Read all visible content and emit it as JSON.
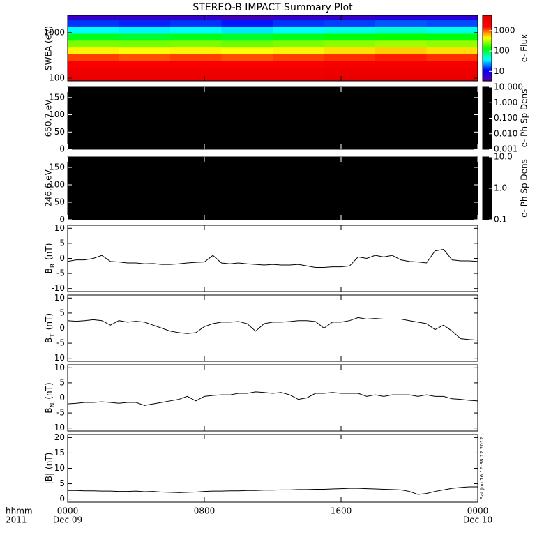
{
  "title": "STEREO-B IMPACT Summary Plot",
  "timestamp": "Sat Jun 16 16:38:12 2012",
  "x_axis": {
    "xlim": [
      0,
      24
    ],
    "xticks": [
      {
        "value": 0,
        "label": "0000"
      },
      {
        "value": 8,
        "label": "0800"
      },
      {
        "value": 16,
        "label": "1600"
      },
      {
        "value": 24,
        "label": "0000"
      }
    ],
    "dates": [
      {
        "value": 0,
        "label": "Dec 09"
      },
      {
        "value": 24,
        "label": "Dec 10"
      }
    ],
    "format_label": "hhmm",
    "year_label": "2011",
    "x": [
      0,
      0.5,
      1,
      1.5,
      2,
      2.5,
      3,
      3.5,
      4,
      4.5,
      5,
      5.5,
      6,
      6.5,
      7,
      7.5,
      8,
      8.5,
      9,
      9.5,
      10,
      10.5,
      11,
      11.5,
      12,
      12.5,
      13,
      13.5,
      14,
      14.5,
      15,
      15.5,
      16,
      16.5,
      17,
      17.5,
      18,
      18.5,
      19,
      19.5,
      20,
      20.5,
      21,
      21.5,
      22,
      22.5,
      23,
      23.5,
      24
    ]
  },
  "chart_data": [
    {
      "type": "heatmap",
      "ylabel": "SWEA (eV)",
      "ylog": true,
      "ylim": [
        87,
        2400
      ],
      "yticks": [
        100,
        1000
      ],
      "x_bins": [
        0,
        3,
        6,
        9,
        12,
        15,
        18,
        21,
        24
      ],
      "y_bins": [
        87,
        120,
        170,
        240,
        340,
        480,
        680,
        960,
        1350,
        1900,
        2400
      ],
      "values": [
        [
          3500,
          3400,
          3500,
          3400,
          3500,
          3600,
          3700,
          3600
        ],
        [
          3000,
          2900,
          3000,
          2900,
          3000,
          3100,
          3200,
          3100
        ],
        [
          2000,
          1900,
          2000,
          1900,
          2000,
          2200,
          2300,
          2200
        ],
        [
          1200,
          1100,
          1200,
          1100,
          1200,
          1300,
          1400,
          1300
        ],
        [
          500,
          480,
          500,
          470,
          500,
          550,
          600,
          550
        ],
        [
          250,
          240,
          250,
          230,
          250,
          270,
          300,
          280
        ],
        [
          120,
          110,
          120,
          110,
          120,
          130,
          140,
          130
        ],
        [
          40,
          38,
          40,
          36,
          40,
          45,
          50,
          45
        ],
        [
          15,
          14,
          15,
          13,
          15,
          16,
          18,
          17
        ],
        [
          6,
          6,
          6,
          5,
          6,
          6,
          7,
          7
        ]
      ],
      "colormap": [
        "#6000a0",
        "#0000ff",
        "#00ffff",
        "#00ff00",
        "#ffff00",
        "#ff0000",
        "#e00000"
      ],
      "colorbar": {
        "label": "e- Flux",
        "clim": [
          3.4,
          5600
        ],
        "ticks": [
          10,
          100,
          1000
        ]
      }
    },
    {
      "type": "heatmap",
      "ylabel": "650.7 eV",
      "ylim": [
        0,
        180
      ],
      "yticks": [
        0,
        50,
        100,
        150
      ],
      "fill": "#000000",
      "colorbar": {
        "label": "e- Ph Sp Dens",
        "clim": [
          0.001,
          10
        ],
        "fill": "#000000",
        "ticks": [
          {
            "value": 10,
            "label": "10.000"
          },
          {
            "value": 1,
            "label": "1.000"
          },
          {
            "value": 0.1,
            "label": "0.100"
          },
          {
            "value": 0.01,
            "label": "0.010"
          },
          0.001
        ]
      }
    },
    {
      "type": "heatmap",
      "ylabel": "246.6 eV",
      "ylim": [
        0,
        180
      ],
      "yticks": [
        0,
        50,
        100,
        150
      ],
      "fill": "#000000",
      "colorbar": {
        "label": "e- Ph Sp Dens",
        "clim": [
          0.1,
          10
        ],
        "fill": "#000000",
        "ticks": [
          {
            "value": 10,
            "label": "10.0"
          },
          {
            "value": 1,
            "label": "1.0"
          },
          0.1
        ]
      }
    },
    {
      "type": "line",
      "ylabel": {
        "base": "B",
        "sub": "R",
        "unit": "(nT)"
      },
      "ylim": [
        -11,
        11
      ],
      "yticks": [
        -10,
        -5,
        0,
        5,
        10
      ],
      "color": "#000000",
      "values": [
        -1,
        -0.5,
        -0.5,
        0,
        1,
        -1,
        -1.2,
        -1.5,
        -1.5,
        -1.8,
        -1.7,
        -2,
        -2,
        -1.8,
        -1.5,
        -1.3,
        -1.2,
        1,
        -1.5,
        -1.8,
        -1.5,
        -1.8,
        -2,
        -2.2,
        -2,
        -2.2,
        -2.2,
        -2,
        -2.5,
        -3,
        -3,
        -2.8,
        -2.8,
        -2.5,
        0.5,
        0,
        1,
        0.5,
        1,
        -0.5,
        -1,
        -1.2,
        -1.5,
        2.5,
        3,
        -0.5,
        -0.8,
        -0.8,
        -1
      ]
    },
    {
      "type": "line",
      "ylabel": {
        "base": "B",
        "sub": "T",
        "unit": "(nT)"
      },
      "ylim": [
        -11,
        11
      ],
      "yticks": [
        -10,
        -5,
        0,
        5,
        10
      ],
      "color": "#000000",
      "values": [
        2.5,
        2.3,
        2.5,
        2.8,
        2.5,
        1,
        2.5,
        2,
        2.3,
        2,
        1,
        0,
        -1,
        -1.5,
        -1.8,
        -1.5,
        0.5,
        1.5,
        2,
        2,
        2.2,
        1.5,
        -1,
        1.5,
        2,
        2,
        2.2,
        2.5,
        2.5,
        2.2,
        0,
        2,
        2,
        2.5,
        3.5,
        3,
        3.2,
        3,
        3,
        3,
        2.5,
        2,
        1.5,
        -0.5,
        1,
        -1,
        -3.5,
        -3.8,
        -4
      ]
    },
    {
      "type": "line",
      "ylabel": {
        "base": "B",
        "sub": "N",
        "unit": "(nT)"
      },
      "ylim": [
        -11,
        11
      ],
      "yticks": [
        -10,
        -5,
        0,
        5,
        10
      ],
      "color": "#000000",
      "values": [
        -2,
        -1.8,
        -1.5,
        -1.5,
        -1.3,
        -1.5,
        -1.8,
        -1.5,
        -1.5,
        -2.5,
        -2,
        -1.5,
        -1,
        -0.5,
        0.5,
        -1,
        0.5,
        0.8,
        1,
        1,
        1.5,
        1.5,
        2,
        1.8,
        1.5,
        1.8,
        1,
        -0.5,
        0,
        1.5,
        1.5,
        1.8,
        1.5,
        1.5,
        1.5,
        0.5,
        1,
        0.5,
        1,
        1,
        1,
        0.5,
        1,
        0.5,
        0.5,
        -0.3,
        -0.5,
        -0.8,
        -1
      ]
    },
    {
      "type": "line",
      "ylabel": {
        "base": "|B|",
        "unit": "(nT)"
      },
      "ylim": [
        -1,
        21
      ],
      "yticks": [
        0,
        5,
        10,
        15,
        20
      ],
      "color": "#000000",
      "values": [
        2.8,
        2.8,
        2.7,
        2.7,
        2.6,
        2.6,
        2.5,
        2.5,
        2.6,
        2.4,
        2.5,
        2.3,
        2.2,
        2.1,
        2.2,
        2.3,
        2.5,
        2.6,
        2.6,
        2.7,
        2.7,
        2.8,
        2.8,
        2.9,
        2.9,
        3,
        3,
        3.1,
        3.1,
        3.2,
        3.2,
        3.3,
        3.4,
        3.5,
        3.5,
        3.4,
        3.3,
        3.2,
        3.1,
        3,
        2.5,
        1.5,
        1.8,
        2.5,
        3,
        3.5,
        3.8,
        4,
        4
      ]
    }
  ]
}
